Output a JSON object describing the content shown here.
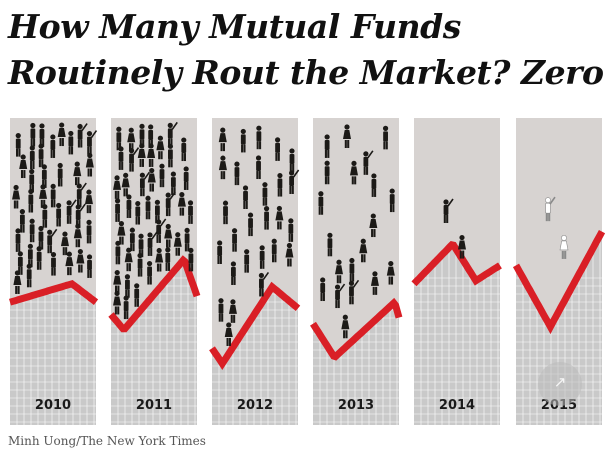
{
  "header": {
    "title_line1": "How Many Mutual Funds",
    "title_line2": "Routinely Rout the Market? Zero"
  },
  "credit": "Minh Uong/The New York Times",
  "colors": {
    "panel_bg": "#d7d3d1",
    "grid_bg": "#c9c9c9",
    "grid_line": "#ffffff",
    "market_line": "#d91f26",
    "figure_dark": "#1c1a17",
    "figure_light": "#ffffff"
  },
  "icons": {
    "person": "standing-person-icon",
    "person_waving": "person-raising-arm-icon",
    "expand": "expand-arrow-icon"
  },
  "chart_data": {
    "type": "pictogram",
    "categories": [
      "2010",
      "2011",
      "2012",
      "2013",
      "2014",
      "2015"
    ],
    "values": [
      70,
      58,
      28,
      20,
      2,
      2
    ],
    "value_description": "Approximate number of fund figures shown per year (estimated from the pictogram)",
    "figure_color": [
      "dark",
      "dark",
      "dark",
      "dark",
      "dark",
      "light"
    ],
    "market_line_shape": "zigzag trend line per panel, unlabeled"
  },
  "expand_button": {
    "icon": "expand-arrow-icon",
    "glyph": "↗"
  }
}
